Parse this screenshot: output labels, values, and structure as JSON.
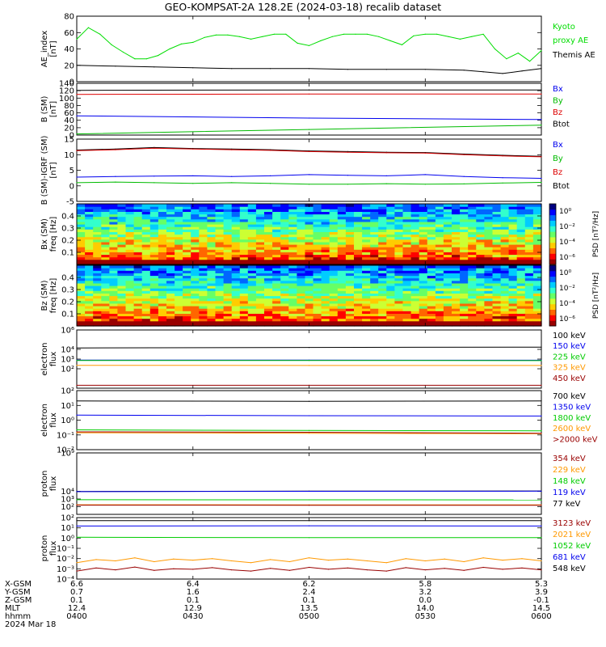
{
  "title": "GEO-KOMPSAT-2A 128.2E (2024-03-18) recalib dataset",
  "chart_data": [
    {
      "type": "line",
      "panel": "ae",
      "ylabel": [
        "AE_index",
        "[nT]"
      ],
      "ylim": [
        0,
        80
      ],
      "yticks": [
        "80",
        "60",
        "40",
        "20",
        "0"
      ],
      "yticks_values": [
        80,
        60,
        40,
        20,
        0
      ],
      "legend": [
        {
          "name": "Kyoto",
          "color": "#00dd00"
        },
        {
          "name": "proxy AE",
          "color": "#00dd00"
        },
        {
          "name": "Themis AE",
          "color": "#000000"
        }
      ],
      "series": [
        {
          "name": "Kyoto proxy AE",
          "color": "#00dd00",
          "x": [
            0,
            3,
            6,
            9,
            12,
            15,
            18,
            21,
            24,
            27,
            30,
            33,
            36,
            39,
            42,
            45,
            48,
            51,
            54,
            57,
            60,
            63,
            66,
            69,
            72,
            75,
            78,
            81,
            84,
            87,
            90,
            93,
            96,
            99,
            102,
            105,
            108,
            111,
            114,
            117,
            120
          ],
          "values": [
            52,
            66,
            58,
            45,
            36,
            28,
            28,
            32,
            40,
            46,
            48,
            54,
            57,
            57,
            55,
            52,
            55,
            58,
            58,
            47,
            44,
            50,
            55,
            58,
            58,
            58,
            55,
            50,
            45,
            56,
            58,
            58,
            55,
            52,
            55,
            58,
            40,
            28,
            35,
            25,
            38
          ]
        },
        {
          "name": "Themis AE",
          "color": "#000000",
          "x": [
            0,
            10,
            20,
            30,
            40,
            50,
            60,
            70,
            80,
            90,
            100,
            105,
            110,
            115,
            120
          ],
          "values": [
            20,
            19,
            18,
            17,
            16,
            16,
            16,
            15,
            15,
            15,
            14,
            12,
            10,
            13,
            16
          ]
        }
      ]
    },
    {
      "type": "line",
      "panel": "bsm",
      "ylabel": [
        "B (SM)",
        "[nT]"
      ],
      "ylim": [
        0,
        140
      ],
      "yticks": [
        "140",
        "120",
        "100",
        "80",
        "60",
        "40",
        "20",
        "0"
      ],
      "yticks_values": [
        140,
        120,
        100,
        80,
        60,
        40,
        20,
        0
      ],
      "legend": [
        {
          "name": "Bx",
          "color": "#0000ee"
        },
        {
          "name": "By",
          "color": "#00bb00"
        },
        {
          "name": "Bz",
          "color": "#dd0000"
        },
        {
          "name": "Btot",
          "color": "#000000"
        }
      ],
      "series": [
        {
          "name": "Btot",
          "color": "#000000",
          "x": [
            0,
            60,
            120
          ],
          "values": [
            121,
            122,
            122
          ]
        },
        {
          "name": "Bz",
          "color": "#dd0000",
          "x": [
            0,
            60,
            120
          ],
          "values": [
            110,
            111,
            111
          ]
        },
        {
          "name": "Bx",
          "color": "#0000ee",
          "x": [
            0,
            60,
            120
          ],
          "values": [
            52,
            46,
            42
          ]
        },
        {
          "name": "By",
          "color": "#00bb00",
          "x": [
            0,
            60,
            120
          ],
          "values": [
            3,
            15,
            27
          ]
        }
      ]
    },
    {
      "type": "line",
      "panel": "bres",
      "ylabel": [
        "B (SM)-IGRF (SM)",
        "[nT]"
      ],
      "ylim": [
        -5,
        15
      ],
      "yticks": [
        "15",
        "10",
        "5",
        "0",
        "-5"
      ],
      "yticks_values": [
        15,
        10,
        5,
        0,
        -5
      ],
      "legend": [
        {
          "name": "Bx",
          "color": "#0000ee"
        },
        {
          "name": "By",
          "color": "#00bb00"
        },
        {
          "name": "Bz",
          "color": "#dd0000"
        },
        {
          "name": "Btot",
          "color": "#000000"
        }
      ],
      "series": [
        {
          "name": "Btot",
          "color": "#000000",
          "x": [
            0,
            10,
            20,
            30,
            40,
            50,
            60,
            70,
            80,
            90,
            100,
            110,
            120
          ],
          "values": [
            11.5,
            11.8,
            12.3,
            12.0,
            11.8,
            11.6,
            11.2,
            11.0,
            10.8,
            10.7,
            10.2,
            9.8,
            9.5
          ]
        },
        {
          "name": "Bz",
          "color": "#dd0000",
          "x": [
            0,
            10,
            20,
            30,
            40,
            50,
            60,
            70,
            80,
            90,
            100,
            110,
            120
          ],
          "values": [
            11.3,
            11.6,
            12.1,
            11.8,
            11.6,
            11.4,
            11.0,
            10.8,
            10.6,
            10.5,
            10.0,
            9.6,
            9.3
          ]
        },
        {
          "name": "Bx",
          "color": "#0000ee",
          "x": [
            0,
            10,
            20,
            30,
            40,
            50,
            60,
            70,
            80,
            90,
            100,
            110,
            120
          ],
          "values": [
            2.8,
            3.0,
            3.1,
            3.2,
            3.0,
            3.2,
            3.6,
            3.4,
            3.2,
            3.6,
            3.0,
            2.6,
            2.4
          ]
        },
        {
          "name": "By",
          "color": "#00bb00",
          "x": [
            0,
            10,
            20,
            30,
            40,
            50,
            60,
            70,
            80,
            90,
            100,
            110,
            120
          ],
          "values": [
            1.0,
            1.2,
            1.0,
            0.8,
            1.0,
            0.8,
            0.5,
            0.5,
            0.7,
            0.5,
            0.6,
            0.9,
            1.1
          ]
        }
      ]
    },
    {
      "type": "heatmap",
      "panel": "bx_psd",
      "ylabel": [
        "Bx (SM)",
        "freq [Hz]"
      ],
      "ylim": [
        0,
        0.5
      ],
      "yticks": [
        "0.4",
        "0.3",
        "0.2",
        "0.1"
      ],
      "yticks_values": [
        0.4,
        0.3,
        0.2,
        0.1
      ],
      "colorbar": {
        "label": "PSD [nT²/Hz]",
        "ticks": [
          "10⁰",
          "10⁻²",
          "10⁻⁴",
          "10⁻⁶"
        ]
      }
    },
    {
      "type": "heatmap",
      "panel": "bz_psd",
      "ylabel": [
        "Bz (SM)",
        "freq [Hz]"
      ],
      "ylim": [
        0,
        0.5
      ],
      "yticks": [
        "0.4",
        "0.3",
        "0.2",
        "0.1"
      ],
      "yticks_values": [
        0.4,
        0.3,
        0.2,
        0.1
      ],
      "colorbar": {
        "label": "PSD [nT²/Hz]",
        "ticks": [
          "10⁰",
          "10⁻²",
          "10⁻⁴",
          "10⁻⁶"
        ]
      }
    },
    {
      "type": "line",
      "panel": "eflux1",
      "ylabel": [
        "electron",
        "flux"
      ],
      "yscale": "log",
      "ylim": [
        1,
        1000000
      ],
      "yticks": [
        "10⁶",
        "10⁴",
        "10³",
        "10²"
      ],
      "yticks_values": [
        1000000,
        10000,
        1000,
        100
      ],
      "legend": [
        {
          "name": "100 keV",
          "color": "#000000"
        },
        {
          "name": "150 keV",
          "color": "#0000ee"
        },
        {
          "name": "225 keV",
          "color": "#00cc00"
        },
        {
          "name": "325 keV",
          "color": "#ff9900"
        },
        {
          "name": "450 keV",
          "color": "#990000"
        }
      ],
      "series": [
        {
          "name": "100 keV",
          "color": "#000000",
          "x": [
            0,
            60,
            120
          ],
          "values": [
            14000,
            16000,
            17000
          ]
        },
        {
          "name": "150 keV",
          "color": "#0000ee",
          "x": [
            0,
            60,
            120
          ],
          "values": [
            780,
            780,
            760
          ]
        },
        {
          "name": "225 keV",
          "color": "#00cc00",
          "x": [
            0,
            60,
            120
          ],
          "values": [
            720,
            720,
            700
          ]
        },
        {
          "name": "325 keV",
          "color": "#ff9900",
          "x": [
            0,
            60,
            120
          ],
          "values": [
            230,
            220,
            220
          ]
        },
        {
          "name": "450 keV",
          "color": "#990000",
          "x": [
            0,
            60,
            120
          ],
          "values": [
            2,
            2,
            2
          ]
        }
      ]
    },
    {
      "type": "line",
      "panel": "eflux2",
      "ylabel": [
        "electron",
        "flux"
      ],
      "yscale": "log",
      "ylim": [
        0.01,
        100
      ],
      "yticks": [
        "10²",
        "10¹",
        "10⁰",
        "10⁻¹",
        "10⁻²"
      ],
      "yticks_values": [
        100,
        10,
        1,
        0.1,
        0.01
      ],
      "legend": [
        {
          "name": "700 keV",
          "color": "#000000"
        },
        {
          "name": "1350 keV",
          "color": "#0000ee"
        },
        {
          "name": "1800 keV",
          "color": "#00cc00"
        },
        {
          "name": "2600 keV",
          "color": "#ff9900"
        },
        {
          "name": ">2000 keV",
          "color": "#990000"
        }
      ],
      "series": [
        {
          "name": "700 keV",
          "color": "#000000",
          "x": [
            0,
            60,
            120
          ],
          "values": [
            20,
            19,
            20
          ]
        },
        {
          "name": "1350 keV",
          "color": "#0000ee",
          "x": [
            0,
            60,
            120
          ],
          "values": [
            2.2,
            2.0,
            1.9
          ]
        },
        {
          "name": "1800 keV",
          "color": "#00cc00",
          "x": [
            0,
            60,
            120
          ],
          "values": [
            0.22,
            0.2,
            0.19
          ]
        },
        {
          "name": "2600 keV",
          "color": "#ff9900",
          "x": [
            0,
            60,
            120
          ],
          "values": [
            0.14,
            0.13,
            0.12
          ]
        },
        {
          "name": ">2000 keV",
          "color": "#990000",
          "x": [
            0,
            60,
            120
          ],
          "values": [
            0.16,
            0.15,
            0.13
          ]
        }
      ]
    },
    {
      "type": "line",
      "panel": "pflux1",
      "ylabel": [
        "proton",
        "flux"
      ],
      "yscale": "log",
      "ylim": [
        10,
        1000000000
      ],
      "yticks": [
        "10⁹",
        "10⁴",
        "10³",
        "10²"
      ],
      "yticks_values": [
        1000000000,
        10000,
        1000,
        100
      ],
      "legend": [
        {
          "name": "354 keV",
          "color": "#990000"
        },
        {
          "name": "229 keV",
          "color": "#ff9900"
        },
        {
          "name": "148 keV",
          "color": "#00cc00"
        },
        {
          "name": "119 keV",
          "color": "#0000ee"
        },
        {
          "name": "77 keV",
          "color": "#000000"
        }
      ],
      "series": [
        {
          "name": "77 keV",
          "color": "#000000",
          "x": [
            0,
            60,
            120
          ],
          "values": [
            9500,
            10500,
            11000
          ]
        },
        {
          "name": "119 keV",
          "color": "#0000ee",
          "x": [
            0,
            60,
            120
          ],
          "values": [
            9000,
            10000,
            10500
          ]
        },
        {
          "name": "148 keV",
          "color": "#00cc00",
          "x": [
            0,
            60,
            120
          ],
          "values": [
            800,
            780,
            760
          ]
        },
        {
          "name": "229 keV",
          "color": "#ff9900",
          "x": [
            0,
            60,
            120
          ],
          "values": [
            180,
            175,
            170
          ]
        },
        {
          "name": "354 keV",
          "color": "#990000",
          "x": [
            0,
            60,
            120
          ],
          "values": [
            160,
            155,
            150
          ]
        }
      ]
    },
    {
      "type": "line",
      "panel": "pflux2",
      "ylabel": [
        "proton",
        "flux"
      ],
      "yscale": "log",
      "ylim": [
        0.0001,
        100
      ],
      "yticks": [
        "10²",
        "10¹",
        "10⁰",
        "10⁻¹",
        "10⁻²",
        "10⁻³",
        "10⁻⁴"
      ],
      "yticks_values": [
        100,
        10,
        1,
        0.1,
        0.01,
        0.001,
        0.0001
      ],
      "legend": [
        {
          "name": "3123 keV",
          "color": "#990000"
        },
        {
          "name": "2021 keV",
          "color": "#ff9900"
        },
        {
          "name": "1052 keV",
          "color": "#00cc00"
        },
        {
          "name": "681 keV",
          "color": "#0000ee"
        },
        {
          "name": "548 keV",
          "color": "#000000"
        }
      ],
      "series": [
        {
          "name": "548 keV",
          "color": "#000000",
          "x": [
            0,
            60,
            120
          ],
          "values": [
            50,
            50,
            50
          ]
        },
        {
          "name": "681 keV",
          "color": "#0000ee",
          "x": [
            0,
            60,
            120
          ],
          "values": [
            15,
            16,
            15
          ]
        },
        {
          "name": "1052 keV",
          "color": "#00cc00",
          "x": [
            0,
            60,
            120
          ],
          "values": [
            1.2,
            1.1,
            1.1
          ]
        },
        {
          "name": "2021 keV",
          "color": "#ff9900",
          "x": [
            0,
            5,
            10,
            15,
            20,
            25,
            30,
            35,
            40,
            45,
            50,
            55,
            60,
            65,
            70,
            75,
            80,
            85,
            90,
            95,
            100,
            105,
            110,
            115,
            120
          ],
          "values": [
            0.004,
            0.008,
            0.006,
            0.012,
            0.005,
            0.009,
            0.007,
            0.01,
            0.006,
            0.004,
            0.008,
            0.005,
            0.012,
            0.007,
            0.009,
            0.006,
            0.004,
            0.01,
            0.006,
            0.009,
            0.005,
            0.012,
            0.007,
            0.01,
            0.006
          ]
        },
        {
          "name": "3123 keV",
          "color": "#990000",
          "x": [
            0,
            5,
            10,
            15,
            20,
            25,
            30,
            35,
            40,
            45,
            50,
            55,
            60,
            65,
            70,
            75,
            80,
            85,
            90,
            95,
            100,
            105,
            110,
            115,
            120
          ],
          "values": [
            0.0006,
            0.0012,
            0.0008,
            0.0015,
            0.0007,
            0.001,
            0.0009,
            0.0013,
            0.0008,
            0.0006,
            0.0011,
            0.0007,
            0.0014,
            0.0009,
            0.0012,
            0.0008,
            0.0006,
            0.0013,
            0.0008,
            0.0011,
            0.0007,
            0.0014,
            0.0009,
            0.0012,
            0.0008
          ]
        }
      ]
    }
  ],
  "x_axis": {
    "row_labels": [
      "X-GSM",
      "Y-GSM",
      "Z-GSM",
      "MLT",
      "hhmm"
    ],
    "date_label": "2024 Mar 18",
    "minutes": [
      0,
      30,
      60,
      90,
      120
    ],
    "columns": [
      [
        "6.6",
        "0.7",
        "0.1",
        "12.4",
        "0400"
      ],
      [
        "6.4",
        "1.6",
        "0.1",
        "12.9",
        "0430"
      ],
      [
        "6.2",
        "2.4",
        "0.1",
        "13.5",
        "0500"
      ],
      [
        "5.8",
        "3.2",
        "0.0",
        "14.0",
        "0530"
      ],
      [
        "5.3",
        "3.9",
        "-0.1",
        "14.5",
        "0600"
      ]
    ]
  },
  "colors": {
    "frame": "#000000",
    "background": "#ffffff"
  }
}
